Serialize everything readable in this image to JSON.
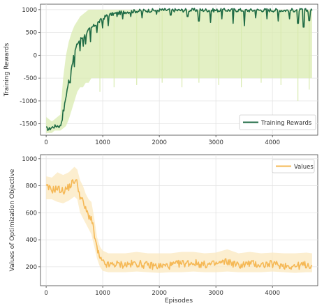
{
  "chart_data": [
    {
      "type": "line",
      "title": "",
      "xlabel": "",
      "ylabel": "Training Rewards",
      "xlim": [
        -100,
        4800
      ],
      "ylim": [
        -1750,
        1120
      ],
      "xticks": [
        0,
        1000,
        2000,
        3000,
        4000
      ],
      "yticks": [
        -1500,
        -1000,
        -500,
        0,
        500,
        1000
      ],
      "xtick_labels": [
        "0",
        "1000",
        "2000",
        "3000",
        "4000"
      ],
      "ytick_labels": [
        "-1500",
        "-1000",
        "-500",
        "0",
        "500",
        "1000"
      ],
      "grid": true,
      "legend_position": "lower-right",
      "series": [
        {
          "name": "Training Rewards",
          "color": "#1f6b45",
          "band_color": "#d9ebb0",
          "x": [
            0,
            50,
            100,
            150,
            200,
            250,
            300,
            350,
            400,
            450,
            500,
            550,
            600,
            650,
            700,
            750,
            800,
            850,
            900,
            950,
            1000,
            1050,
            1100,
            1200,
            1300,
            1400,
            1500,
            1600,
            1700,
            1800,
            1900,
            2000,
            2200,
            2400,
            2600,
            2800,
            3000,
            3200,
            3400,
            3600,
            3800,
            4000,
            4200,
            4400,
            4600,
            4700
          ],
          "values": [
            -1600,
            -1620,
            -1580,
            -1560,
            -1540,
            -1560,
            -1300,
            -900,
            -550,
            -250,
            50,
            250,
            350,
            400,
            450,
            550,
            600,
            650,
            700,
            750,
            800,
            850,
            880,
            910,
            930,
            950,
            960,
            970,
            975,
            980,
            985,
            990,
            990,
            985,
            990,
            990,
            985,
            990,
            990,
            985,
            990,
            990,
            985,
            990,
            985,
            980
          ],
          "band_low": [
            -1700,
            -1700,
            -1700,
            -1650,
            -1650,
            -1650,
            -1600,
            -1550,
            -1400,
            -1200,
            -1000,
            -800,
            -700,
            -700,
            -600,
            -600,
            -500,
            -500,
            -500,
            -500,
            -500,
            -500,
            -500,
            -500,
            -500,
            -500,
            -500,
            -500,
            -500,
            -500,
            -500,
            -500,
            -500,
            -500,
            -500,
            -500,
            -500,
            -500,
            -500,
            -500,
            -500,
            -500,
            -500,
            -500,
            -500,
            -500
          ],
          "band_high": [
            -1350,
            -1400,
            -1450,
            -1400,
            -1350,
            -1300,
            -500,
            0,
            300,
            500,
            650,
            750,
            850,
            900,
            950,
            1000,
            1000,
            1000,
            1000,
            1000,
            1000,
            1000,
            1000,
            1000,
            1000,
            1000,
            1000,
            1000,
            1000,
            1000,
            1000,
            1000,
            1000,
            1000,
            1000,
            1000,
            1000,
            1000,
            1000,
            1000,
            1000,
            1000,
            1000,
            1000,
            1000,
            1000
          ],
          "dips": [
            [
              300,
              -1200
            ],
            [
              420,
              -600
            ],
            [
              500,
              -250
            ],
            [
              600,
              100
            ],
            [
              650,
              200
            ],
            [
              700,
              250
            ],
            [
              780,
              300
            ],
            [
              900,
              500
            ],
            [
              1000,
              600
            ],
            [
              1100,
              650
            ],
            [
              1250,
              850
            ],
            [
              1350,
              800
            ],
            [
              1500,
              850
            ],
            [
              1700,
              820
            ],
            [
              1950,
              900
            ],
            [
              2200,
              880
            ],
            [
              2500,
              850
            ],
            [
              2700,
              750
            ],
            [
              2900,
              720
            ],
            [
              3100,
              800
            ],
            [
              3300,
              700
            ],
            [
              3500,
              650
            ],
            [
              3700,
              820
            ],
            [
              3900,
              800
            ],
            [
              4100,
              750
            ],
            [
              4300,
              800
            ],
            [
              4450,
              700
            ],
            [
              4550,
              620
            ],
            [
              4650,
              760
            ]
          ],
          "band_spikes": [
            [
              950,
              -800
            ],
            [
              1200,
              -700
            ],
            [
              1600,
              -650
            ],
            [
              2050,
              -600
            ],
            [
              2400,
              -700
            ],
            [
              2700,
              -600
            ],
            [
              3050,
              -650
            ],
            [
              3450,
              -700
            ],
            [
              3800,
              -600
            ],
            [
              4150,
              -650
            ],
            [
              4450,
              -1000
            ],
            [
              4650,
              -750
            ]
          ]
        }
      ]
    },
    {
      "type": "line",
      "title": "",
      "xlabel": "Episodes",
      "ylabel": "Values of Optimization Objective",
      "xlim": [
        -100,
        4800
      ],
      "ylim": [
        60,
        1030
      ],
      "xticks": [
        0,
        1000,
        2000,
        3000,
        4000
      ],
      "yticks": [
        200,
        400,
        600,
        800,
        1000
      ],
      "xtick_labels": [
        "0",
        "1000",
        "2000",
        "3000",
        "4000"
      ],
      "ytick_labels": [
        "200",
        "400",
        "600",
        "800",
        "1000"
      ],
      "grid": true,
      "legend_position": "top-right",
      "series": [
        {
          "name": "Values",
          "color": "#f5b855",
          "band_color": "#fbe8bf",
          "x": [
            0,
            100,
            200,
            300,
            400,
            500,
            550,
            600,
            650,
            700,
            750,
            800,
            850,
            900,
            950,
            1000,
            1100,
            1200,
            1400,
            1600,
            1800,
            2000,
            2200,
            2400,
            2600,
            2800,
            3000,
            3200,
            3400,
            3600,
            3800,
            4000,
            4200,
            4400,
            4600,
            4700
          ],
          "values": [
            790,
            770,
            780,
            760,
            790,
            840,
            820,
            720,
            680,
            620,
            580,
            560,
            440,
            330,
            260,
            230,
            210,
            220,
            215,
            225,
            210,
            205,
            210,
            225,
            230,
            215,
            220,
            240,
            210,
            225,
            215,
            220,
            210,
            205,
            215,
            210
          ],
          "band_low": [
            700,
            700,
            680,
            670,
            690,
            720,
            700,
            600,
            560,
            520,
            480,
            440,
            350,
            260,
            200,
            170,
            160,
            160,
            160,
            165,
            160,
            155,
            160,
            160,
            165,
            160,
            160,
            165,
            160,
            160,
            160,
            165,
            160,
            155,
            160,
            160
          ],
          "band_high": [
            870,
            860,
            900,
            880,
            900,
            940,
            920,
            840,
            800,
            740,
            700,
            680,
            560,
            420,
            350,
            320,
            300,
            300,
            300,
            310,
            300,
            300,
            300,
            310,
            310,
            300,
            305,
            330,
            300,
            310,
            300,
            305,
            300,
            300,
            305,
            300
          ]
        }
      ]
    }
  ],
  "legend": {
    "top_label": "Training Rewards",
    "bottom_label": "Values"
  }
}
